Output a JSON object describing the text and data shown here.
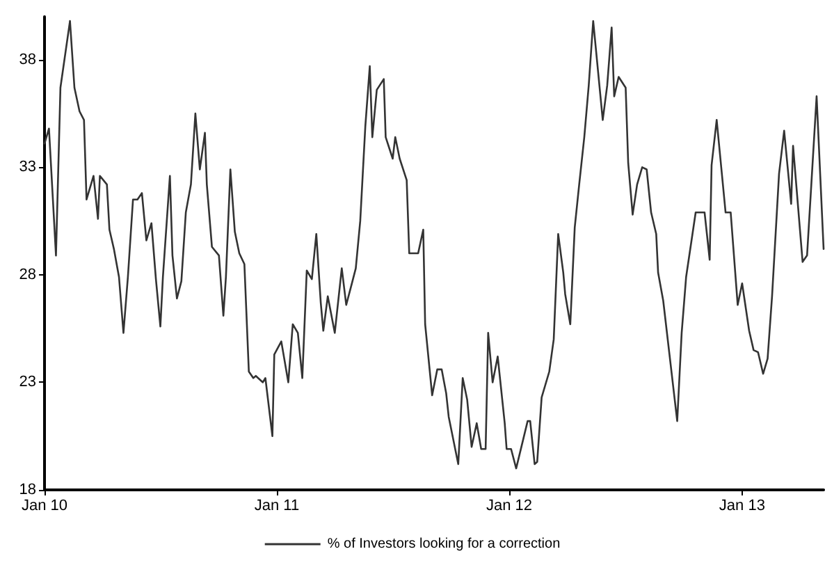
{
  "chart_data": {
    "type": "line",
    "xlim": [
      "2010-01-01",
      "2013-05-09"
    ],
    "xticks": [
      {
        "value": "2010-01-01",
        "label": "Jan 10"
      },
      {
        "value": "2011-01-01",
        "label": "Jan 11"
      },
      {
        "value": "2012-01-01",
        "label": "Jan 12"
      },
      {
        "value": "2013-01-01",
        "label": "Jan 13"
      }
    ],
    "ylim": [
      18,
      40
    ],
    "yticks": [
      18,
      23,
      28,
      33,
      38
    ],
    "grid": false,
    "legend": "bottom",
    "marker": "none",
    "line_style": "solid",
    "series": [
      {
        "name": "% of Investors looking for a correction",
        "color": "#333333",
        "x": [
          "2010-01-01",
          "2010-01-08",
          "2010-01-19",
          "2010-01-26",
          "2010-02-10",
          "2010-02-17",
          "2010-02-25",
          "2010-03-04",
          "2010-03-08",
          "2010-03-19",
          "2010-03-26",
          "2010-03-29",
          "2010-04-09",
          "2010-04-13",
          "2010-04-20",
          "2010-04-28",
          "2010-05-05",
          "2010-05-12",
          "2010-05-20",
          "2010-05-27",
          "2010-06-03",
          "2010-06-10",
          "2010-06-18",
          "2010-06-25",
          "2010-07-02",
          "2010-07-06",
          "2010-07-17",
          "2010-07-21",
          "2010-07-28",
          "2010-08-04",
          "2010-08-11",
          "2010-08-19",
          "2010-08-26",
          "2010-09-02",
          "2010-09-10",
          "2010-09-13",
          "2010-09-21",
          "2010-10-02",
          "2010-10-09",
          "2010-10-13",
          "2010-10-20",
          "2010-10-27",
          "2010-11-03",
          "2010-11-11",
          "2010-11-18",
          "2010-11-25",
          "2010-11-29",
          "2010-12-10",
          "2010-12-14",
          "2010-12-25",
          "2010-12-28",
          "2011-01-08",
          "2011-01-19",
          "2011-01-26",
          "2011-02-03",
          "2011-02-10",
          "2011-02-17",
          "2011-02-25",
          "2011-03-04",
          "2011-03-11",
          "2011-03-15",
          "2011-03-22",
          "2011-04-02",
          "2011-04-13",
          "2011-04-20",
          "2011-04-28",
          "2011-05-05",
          "2011-05-12",
          "2011-05-20",
          "2011-05-27",
          "2011-05-31",
          "2011-06-07",
          "2011-06-18",
          "2011-06-21",
          "2011-07-02",
          "2011-07-06",
          "2011-07-13",
          "2011-07-24",
          "2011-07-28",
          "2011-08-11",
          "2011-08-19",
          "2011-08-22",
          "2011-09-02",
          "2011-09-10",
          "2011-09-17",
          "2011-09-24",
          "2011-09-28",
          "2011-10-13",
          "2011-10-20",
          "2011-10-27",
          "2011-11-03",
          "2011-11-11",
          "2011-11-18",
          "2011-11-25",
          "2011-11-29",
          "2011-12-06",
          "2011-12-14",
          "2011-12-25",
          "2011-12-28",
          "2012-01-04",
          "2012-01-12",
          "2012-01-30",
          "2012-02-03",
          "2012-02-10",
          "2012-02-14",
          "2012-02-21",
          "2012-03-04",
          "2012-03-11",
          "2012-03-18",
          "2012-03-26",
          "2012-03-29",
          "2012-04-06",
          "2012-04-13",
          "2012-04-20",
          "2012-04-28",
          "2012-05-05",
          "2012-05-12",
          "2012-05-27",
          "2012-06-03",
          "2012-06-10",
          "2012-06-14",
          "2012-06-21",
          "2012-07-02",
          "2012-07-06",
          "2012-07-13",
          "2012-07-20",
          "2012-07-28",
          "2012-08-04",
          "2012-08-11",
          "2012-08-19",
          "2012-08-22",
          "2012-08-30",
          "2012-09-21",
          "2012-09-28",
          "2012-10-05",
          "2012-10-20",
          "2012-11-03",
          "2012-11-11",
          "2012-11-14",
          "2012-11-22",
          "2012-12-06",
          "2012-12-14",
          "2012-12-25",
          "2013-01-01",
          "2013-01-12",
          "2013-01-19",
          "2013-01-26",
          "2013-02-03",
          "2013-02-10",
          "2013-02-17",
          "2013-02-28",
          "2013-03-08",
          "2013-03-19",
          "2013-03-22",
          "2013-04-06",
          "2013-04-13",
          "2013-04-28",
          "2013-05-09"
        ],
        "values": [
          34.1,
          34.8,
          28.9,
          36.7,
          39.8,
          36.7,
          35.6,
          35.2,
          31.5,
          32.6,
          30.6,
          32.6,
          32.2,
          30.1,
          29.2,
          27.9,
          25.3,
          27.9,
          31.5,
          31.5,
          31.8,
          29.6,
          30.4,
          27.8,
          25.6,
          27.9,
          32.6,
          28.9,
          26.9,
          27.7,
          30.9,
          32.2,
          35.5,
          32.9,
          34.6,
          32.2,
          29.3,
          28.9,
          26.1,
          27.9,
          32.9,
          30.0,
          29.0,
          28.5,
          23.5,
          23.2,
          23.3,
          23.0,
          23.2,
          20.5,
          24.3,
          24.9,
          23.0,
          25.7,
          25.3,
          23.2,
          28.2,
          27.8,
          29.9,
          26.7,
          25.4,
          27.0,
          25.3,
          28.3,
          26.6,
          27.5,
          28.3,
          30.5,
          34.9,
          37.7,
          34.4,
          36.6,
          37.1,
          34.4,
          33.4,
          34.4,
          33.4,
          32.4,
          29.0,
          29.0,
          30.1,
          25.7,
          22.4,
          23.6,
          23.6,
          22.5,
          21.4,
          19.2,
          23.2,
          22.2,
          20.0,
          21.1,
          19.9,
          19.9,
          25.3,
          23.0,
          24.2,
          21.1,
          19.9,
          19.9,
          19.0,
          21.2,
          21.2,
          19.2,
          19.3,
          22.3,
          23.5,
          25.0,
          29.9,
          28.1,
          27.1,
          25.7,
          30.2,
          32.2,
          34.4,
          36.8,
          39.8,
          35.2,
          36.8,
          39.5,
          36.3,
          37.2,
          36.7,
          33.2,
          30.8,
          32.2,
          33.0,
          32.9,
          30.9,
          29.9,
          28.1,
          26.8,
          21.2,
          25.3,
          27.9,
          30.9,
          30.9,
          28.7,
          33.1,
          35.2,
          30.9,
          30.9,
          26.6,
          27.6,
          25.4,
          24.5,
          24.4,
          23.4,
          24.1,
          27.0,
          32.7,
          34.7,
          31.3,
          34.0,
          28.6,
          28.9,
          36.3,
          29.2
        ]
      }
    ]
  }
}
